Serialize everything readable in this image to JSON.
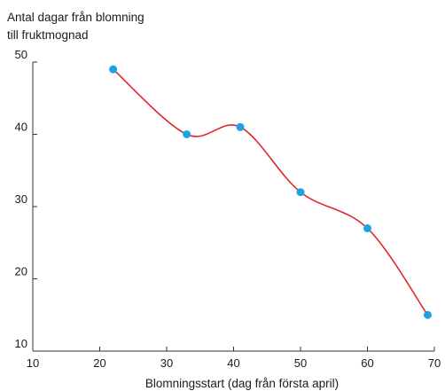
{
  "chart_data": {
    "type": "line",
    "ylabel_lines": [
      "Antal dagar från blomning",
      "till fruktmognad"
    ],
    "xlabel": "Blomningsstart (dag från första april)",
    "x": [
      22,
      33,
      41,
      50,
      60,
      69
    ],
    "y": [
      49,
      40,
      41,
      32,
      27,
      15
    ],
    "xlim": [
      10,
      70
    ],
    "ylim": [
      10,
      50
    ],
    "xticks": [
      10,
      20,
      30,
      40,
      50,
      60,
      70
    ],
    "yticks": [
      10,
      20,
      30,
      40,
      50
    ],
    "line_color": "#e0262a",
    "marker_color": "#1aa3e8",
    "axis_color": "#333333",
    "grid": false,
    "smooth": true
  }
}
